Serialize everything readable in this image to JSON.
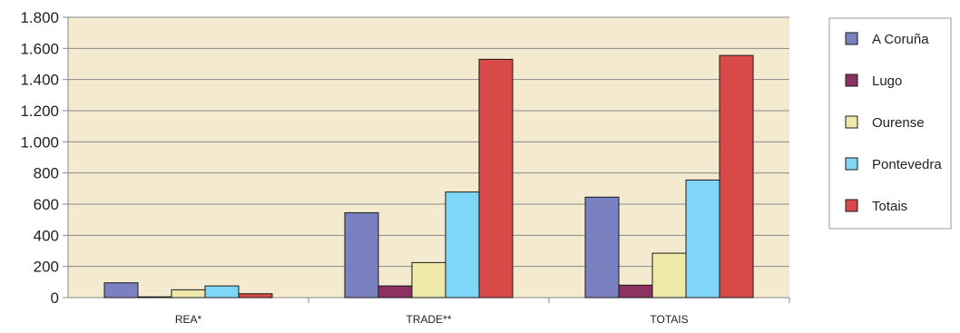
{
  "chart_data": {
    "type": "bar",
    "categories": [
      "REA*",
      "TRADE**",
      "TOTAIS"
    ],
    "series": [
      {
        "name": "A Coruña",
        "values": [
          95,
          545,
          645
        ],
        "color": "#7b80c0"
      },
      {
        "name": "Lugo",
        "values": [
          5,
          75,
          80
        ],
        "color": "#8c3263"
      },
      {
        "name": "Ourense",
        "values": [
          50,
          225,
          285
        ],
        "color": "#efeaaa"
      },
      {
        "name": "Pontevedra",
        "values": [
          75,
          678,
          755
        ],
        "color": "#80d6f7"
      },
      {
        "name": "Totais",
        "values": [
          25,
          1530,
          1555
        ],
        "color": "#d84a48"
      }
    ],
    "ylim": [
      0,
      1800
    ],
    "yticks": [
      0,
      200,
      400,
      600,
      800,
      1000,
      1200,
      1400,
      1600,
      1800
    ],
    "ytick_labels": [
      "0",
      "200",
      "400",
      "600",
      "800",
      "1.000",
      "1.200",
      "1.400",
      "1.600",
      "1.800"
    ],
    "grid": true,
    "legend": "right",
    "plot_background": "#f3ead0"
  }
}
